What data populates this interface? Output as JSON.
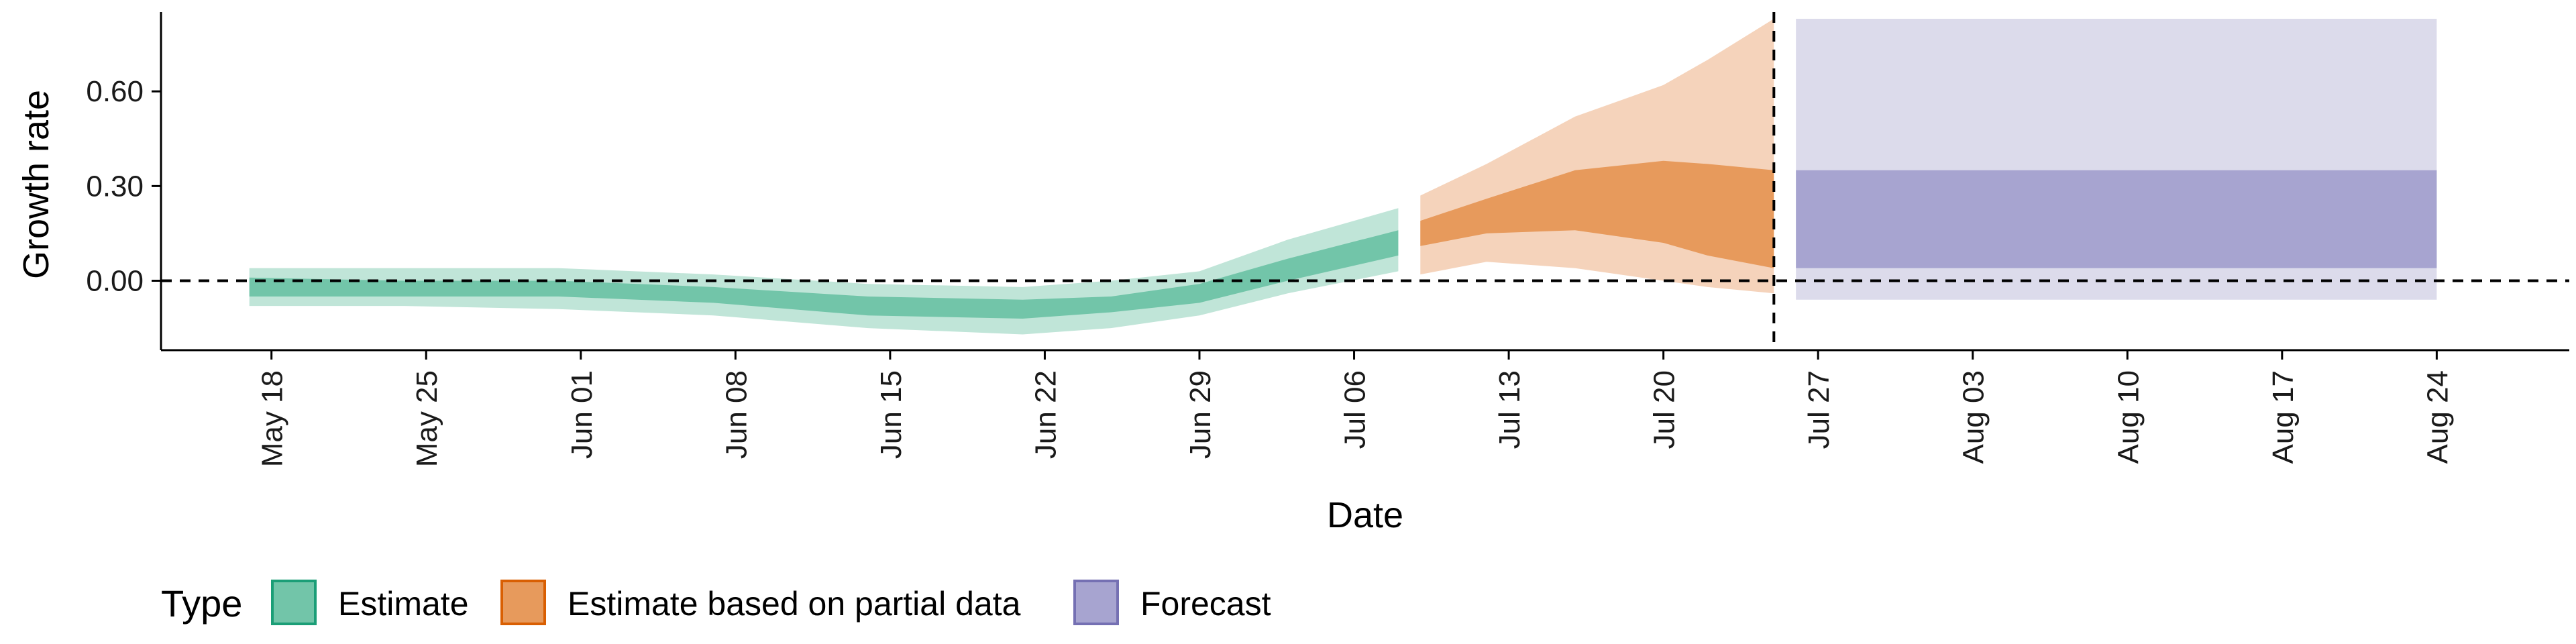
{
  "chart_data": {
    "type": "area",
    "title": "",
    "xlabel": "Date",
    "ylabel": "Growth rate",
    "x_type": "date",
    "x_range": [
      "2020-05-13",
      "2020-08-30"
    ],
    "ylim": [
      -0.22,
      0.83
    ],
    "y_ticks": [
      0.0,
      0.3,
      0.6
    ],
    "y_tick_labels": [
      "0.00",
      "0.30",
      "0.60"
    ],
    "x_ticks": [
      "2020-05-18",
      "2020-05-25",
      "2020-06-01",
      "2020-06-08",
      "2020-06-15",
      "2020-06-22",
      "2020-06-29",
      "2020-07-06",
      "2020-07-13",
      "2020-07-20",
      "2020-07-27",
      "2020-08-03",
      "2020-08-10",
      "2020-08-17",
      "2020-08-24"
    ],
    "x_tick_labels": [
      "May 18",
      "May 25",
      "Jun 01",
      "Jun 08",
      "Jun 15",
      "Jun 22",
      "Jun 29",
      "Jul 06",
      "Jul 13",
      "Jul 20",
      "Jul 27",
      "Aug 03",
      "Aug 10",
      "Aug 17",
      "Aug 24"
    ],
    "reference_lines": {
      "horizontal_dashed_y": 0.0,
      "vertical_dashed_date": "2020-07-25"
    },
    "grid": false,
    "legend": {
      "title": "Type",
      "position": "bottom-left",
      "entries": [
        "Estimate",
        "Estimate based on partial data",
        "Forecast"
      ]
    },
    "series": [
      {
        "name": "Estimate",
        "color": "#1b9e77",
        "points": [
          {
            "date": "2020-05-17",
            "outer_lo": -0.08,
            "inner_lo": -0.05,
            "inner_hi": 0.01,
            "outer_hi": 0.04
          },
          {
            "date": "2020-05-24",
            "outer_lo": -0.08,
            "inner_lo": -0.05,
            "inner_hi": 0.0,
            "outer_hi": 0.04
          },
          {
            "date": "2020-05-31",
            "outer_lo": -0.09,
            "inner_lo": -0.05,
            "inner_hi": 0.0,
            "outer_hi": 0.04
          },
          {
            "date": "2020-06-07",
            "outer_lo": -0.11,
            "inner_lo": -0.07,
            "inner_hi": -0.02,
            "outer_hi": 0.02
          },
          {
            "date": "2020-06-14",
            "outer_lo": -0.15,
            "inner_lo": -0.11,
            "inner_hi": -0.05,
            "outer_hi": -0.01
          },
          {
            "date": "2020-06-21",
            "outer_lo": -0.17,
            "inner_lo": -0.12,
            "inner_hi": -0.06,
            "outer_hi": -0.02
          },
          {
            "date": "2020-06-25",
            "outer_lo": -0.15,
            "inner_lo": -0.1,
            "inner_hi": -0.05,
            "outer_hi": 0.0
          },
          {
            "date": "2020-06-29",
            "outer_lo": -0.11,
            "inner_lo": -0.07,
            "inner_hi": -0.01,
            "outer_hi": 0.03
          },
          {
            "date": "2020-07-03",
            "outer_lo": -0.04,
            "inner_lo": 0.0,
            "inner_hi": 0.07,
            "outer_hi": 0.13
          },
          {
            "date": "2020-07-08",
            "outer_lo": 0.03,
            "inner_lo": 0.08,
            "inner_hi": 0.16,
            "outer_hi": 0.23
          }
        ]
      },
      {
        "name": "Estimate based on partial data",
        "color": "#d95f02",
        "points": [
          {
            "date": "2020-07-09",
            "outer_lo": 0.02,
            "inner_lo": 0.11,
            "inner_hi": 0.19,
            "outer_hi": 0.27
          },
          {
            "date": "2020-07-12",
            "outer_lo": 0.06,
            "inner_lo": 0.15,
            "inner_hi": 0.26,
            "outer_hi": 0.37
          },
          {
            "date": "2020-07-16",
            "outer_lo": 0.04,
            "inner_lo": 0.16,
            "inner_hi": 0.35,
            "outer_hi": 0.52
          },
          {
            "date": "2020-07-20",
            "outer_lo": 0.0,
            "inner_lo": 0.12,
            "inner_hi": 0.38,
            "outer_hi": 0.62
          },
          {
            "date": "2020-07-22",
            "outer_lo": -0.02,
            "inner_lo": 0.08,
            "inner_hi": 0.37,
            "outer_hi": 0.7
          },
          {
            "date": "2020-07-25",
            "outer_lo": -0.04,
            "inner_lo": 0.04,
            "inner_hi": 0.35,
            "outer_hi": 0.83
          }
        ]
      },
      {
        "name": "Forecast",
        "color": "#7570b3",
        "points": [
          {
            "date": "2020-07-26",
            "outer_lo": -0.06,
            "inner_lo": 0.04,
            "inner_hi": 0.35,
            "outer_hi": 0.83
          },
          {
            "date": "2020-08-24",
            "outer_lo": -0.06,
            "inner_lo": 0.04,
            "inner_hi": 0.35,
            "outer_hi": 0.83
          }
        ]
      }
    ],
    "colors": {
      "estimate_fill": "#72c5a9",
      "estimate_outer": "#c0e5d8",
      "estimate_border": "#1b9e77",
      "partial_fill": "#e79a5c",
      "partial_outer": "#f5d3bb",
      "partial_border": "#d95f02",
      "forecast_fill": "#a7a4d0",
      "forecast_outer": "#dcdbeb",
      "forecast_border": "#7570b3",
      "axis": "#000000"
    }
  }
}
